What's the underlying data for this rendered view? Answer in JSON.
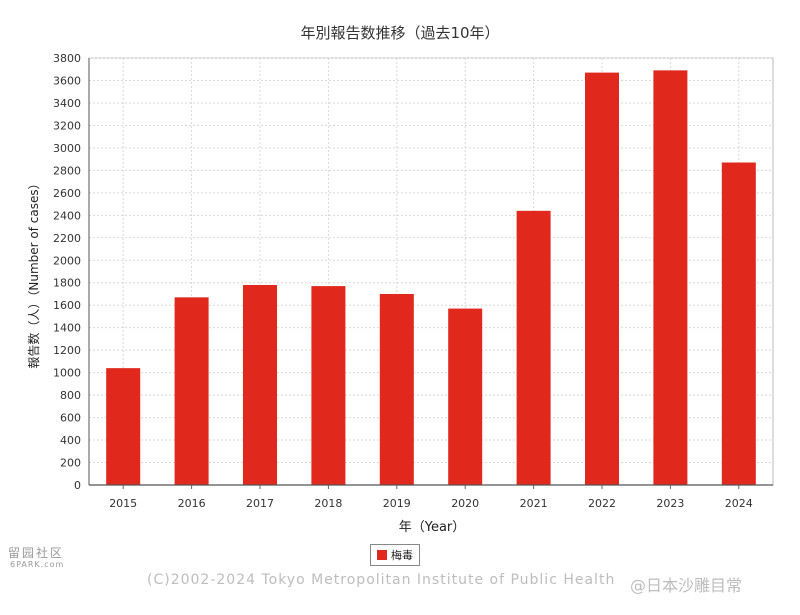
{
  "chart_data": {
    "type": "bar",
    "title": "年別報告数推移（過去10年）",
    "xlabel": "年（Year）",
    "ylabel": "報告数（人）（Number of cases）",
    "categories": [
      "2015",
      "2016",
      "2017",
      "2018",
      "2019",
      "2020",
      "2021",
      "2022",
      "2023",
      "2024"
    ],
    "series": [
      {
        "name": "梅毒",
        "color": "#e0281d",
        "values": [
          1040,
          1670,
          1780,
          1770,
          1700,
          1570,
          2440,
          3670,
          3690,
          2870
        ]
      }
    ],
    "ylim": [
      0,
      3800
    ],
    "yticks": [
      0,
      200,
      400,
      600,
      800,
      1000,
      1200,
      1400,
      1600,
      1800,
      2000,
      2200,
      2400,
      2600,
      2800,
      3000,
      3200,
      3400,
      3600,
      3800
    ],
    "grid": true,
    "legend_position": "bottom"
  },
  "legend": {
    "label": "梅毒"
  },
  "footer": {
    "copyright": "(C)2002-2024 Tokyo Metropolitan Institute of Public Health",
    "watermark_right": "@日本沙雕目常",
    "watermark_left_1": "留园社区",
    "watermark_left_2": "6PARK.com"
  },
  "colors": {
    "bar": "#e0281d",
    "grid": "#d8d8d8"
  }
}
